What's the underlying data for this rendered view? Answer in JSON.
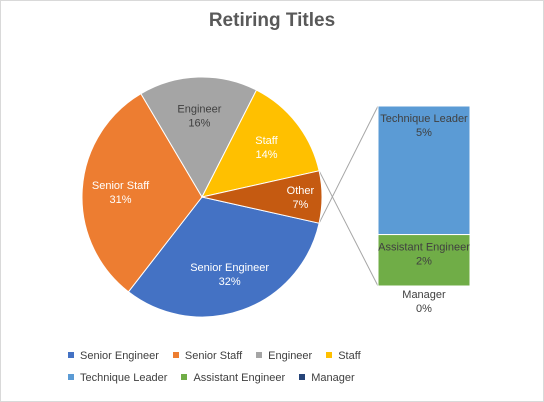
{
  "chart_data": {
    "type": "pie",
    "subtype": "bar-of-pie",
    "title": "Retiring Titles",
    "pie": {
      "slices": [
        {
          "label": "Senior Engineer",
          "pct": "32%",
          "value": 32,
          "color": "#4472c4",
          "text_color": "#ffffff"
        },
        {
          "label": "Senior Staff",
          "pct": "31%",
          "value": 31,
          "color": "#ed7d31",
          "text_color": "#ffffff"
        },
        {
          "label": "Engineer",
          "pct": "16%",
          "value": 16,
          "color": "#a5a5a5",
          "text_color": "#404040"
        },
        {
          "label": "Staff",
          "pct": "14%",
          "value": 14,
          "color": "#ffc000",
          "text_color": "#ffffff"
        },
        {
          "label": "Other",
          "pct": "7%",
          "value": 7,
          "color": "#c55a11",
          "text_color": "#ffffff"
        }
      ]
    },
    "bar": {
      "segments": [
        {
          "label": "Technique Leader",
          "pct": "5%",
          "value": 5,
          "color": "#5b9bd5",
          "text_color": "#404040"
        },
        {
          "label": "Assistant Engineer",
          "pct": "2%",
          "value": 2,
          "color": "#70ad47",
          "text_color": "#404040"
        },
        {
          "label": "Manager",
          "pct": "0%",
          "value": 0,
          "color": "#264478",
          "text_color": "#404040"
        }
      ]
    },
    "legend": {
      "placement": "bottom",
      "rows": [
        [
          {
            "label": "Senior Engineer",
            "color": "#4472c4"
          },
          {
            "label": "Senior Staff",
            "color": "#ed7d31"
          },
          {
            "label": "Engineer",
            "color": "#a5a5a5"
          },
          {
            "label": "Staff",
            "color": "#ffc000"
          }
        ],
        [
          {
            "label": "Technique Leader",
            "color": "#5b9bd5"
          },
          {
            "label": "Assistant Engineer",
            "color": "#70ad47"
          },
          {
            "label": "Manager",
            "color": "#264478"
          }
        ]
      ]
    }
  }
}
